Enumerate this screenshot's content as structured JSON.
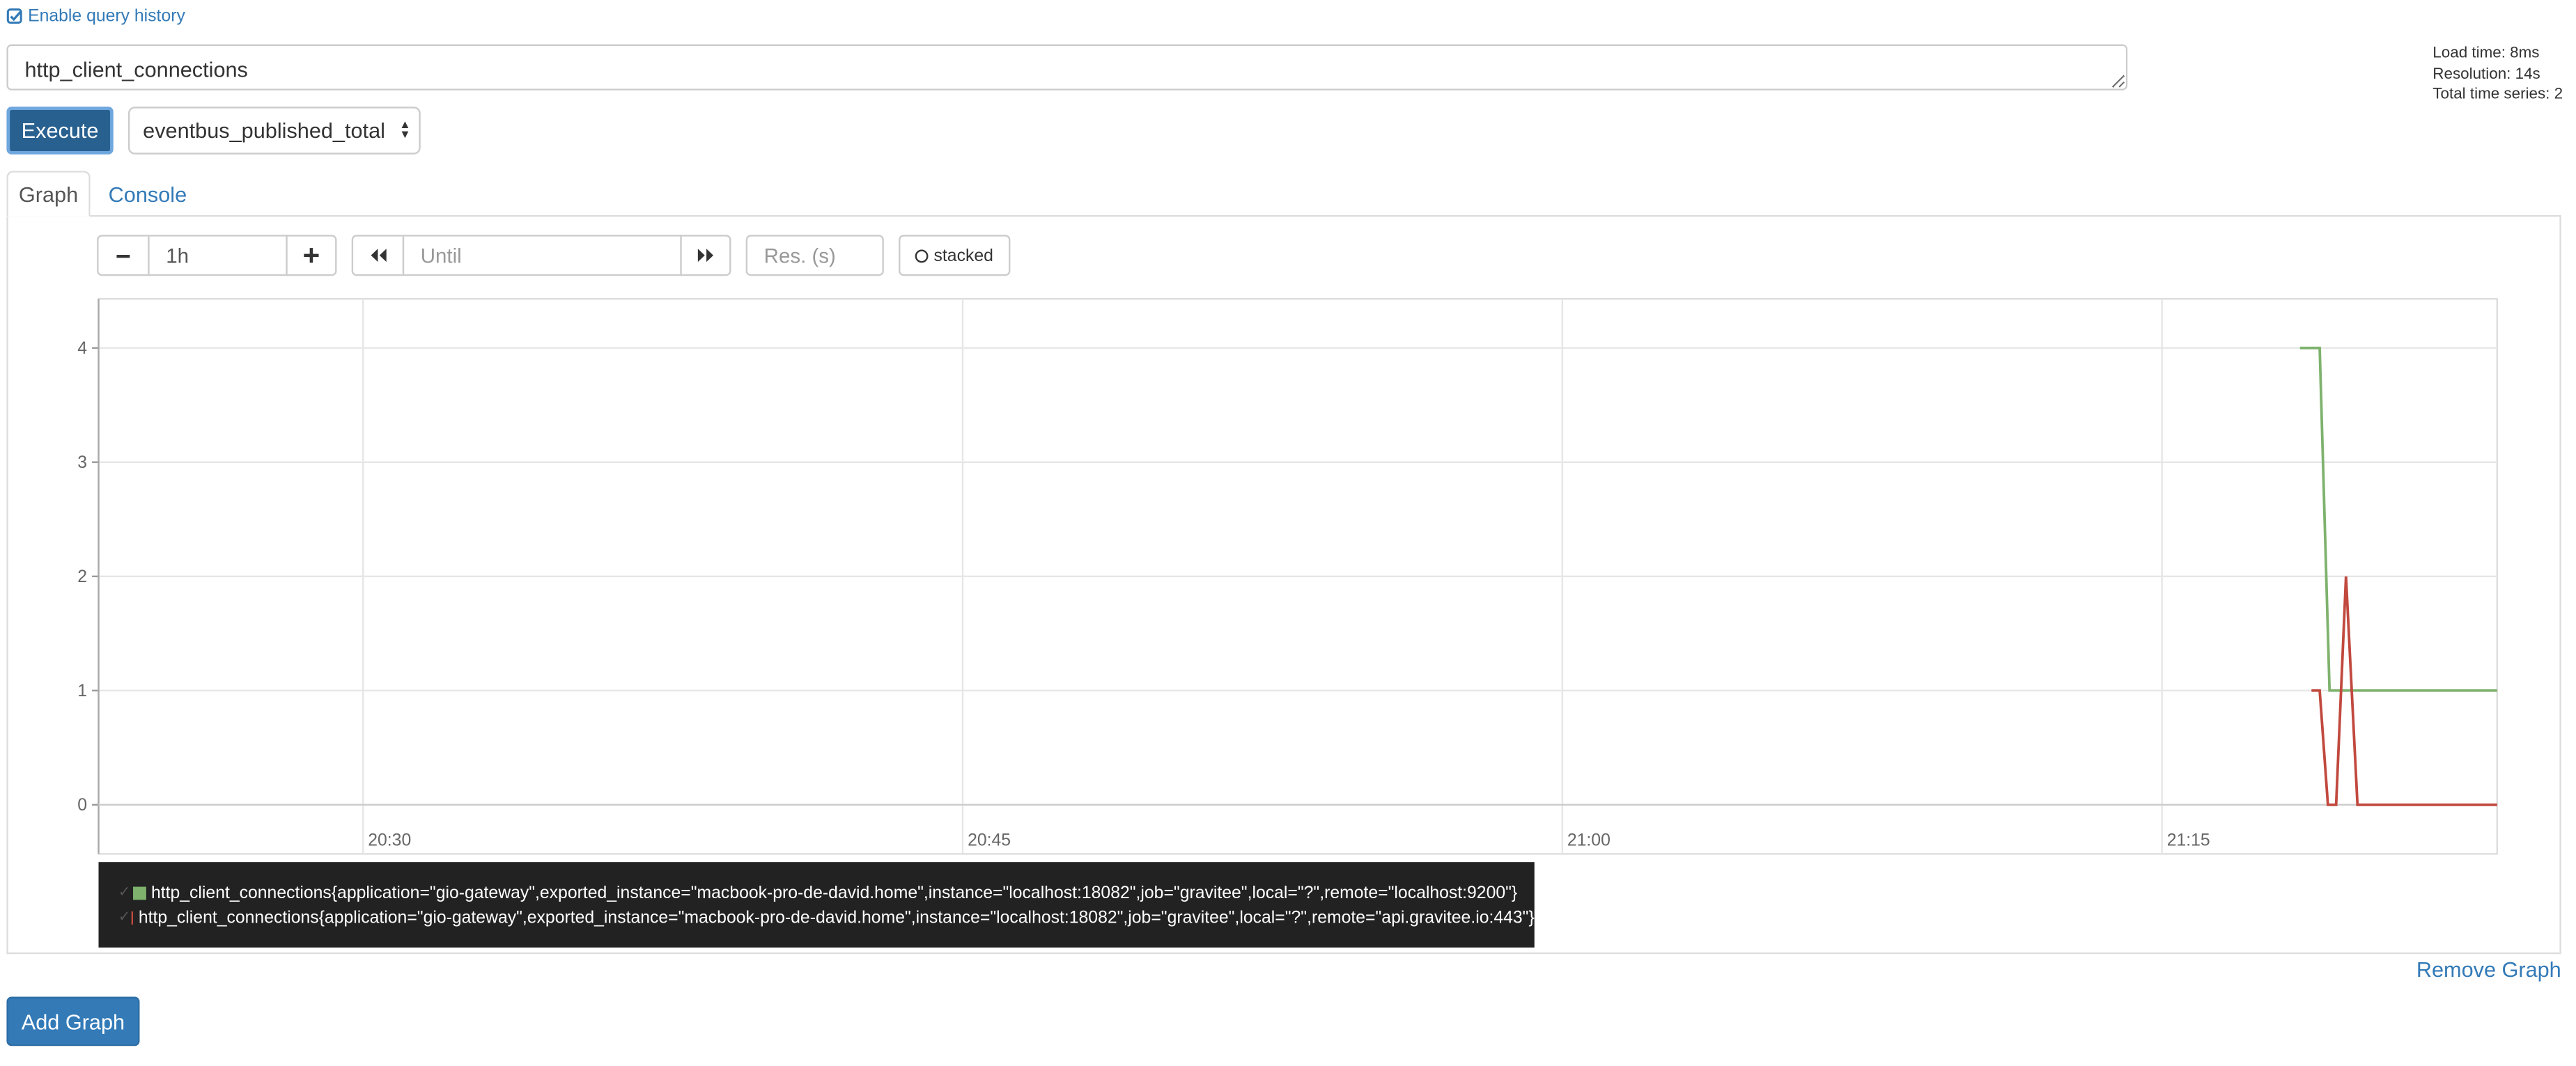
{
  "history": {
    "label": "Enable query history"
  },
  "query": {
    "expression": "http_client_connections"
  },
  "stats": {
    "load_time": "Load time: 8ms",
    "resolution": "Resolution: 14s",
    "total_series": "Total time series: 2"
  },
  "toolbar": {
    "execute_label": "Execute",
    "metric_selected": "eventbus_published_total"
  },
  "tabs": [
    {
      "label": "Graph",
      "active": true
    },
    {
      "label": "Console",
      "active": false
    }
  ],
  "graph_controls": {
    "minus_icon": "minus-icon",
    "range": "1h",
    "plus_icon": "plus-icon",
    "back_icon": "backward-icon",
    "until_placeholder": "Until",
    "forward_icon": "forward-icon",
    "res_placeholder": "Res. (s)",
    "stacked_label": "stacked"
  },
  "chart_data": {
    "type": "line",
    "x_ticks": [
      "20:30",
      "20:45",
      "21:00",
      "21:15"
    ],
    "y_ticks": [
      0,
      1,
      2,
      3,
      4
    ],
    "ylim": [
      -0.43,
      4.43
    ],
    "xlim": [
      "20:23.4",
      "21:23.4"
    ],
    "grid": true,
    "series": [
      {
        "name": "http_client_connections{application=\"gio-gateway\",exported_instance=\"macbook-pro-de-david.home\",instance=\"localhost:18082\",job=\"gravitee\",local=\"?\",remote=\"localhost:9200\"}",
        "color": "#7eb26d",
        "points": [
          [
            1400,
            4
          ],
          [
            1412,
            4
          ],
          [
            1418,
            1
          ],
          [
            1520,
            1
          ]
        ]
      },
      {
        "name": "http_client_connections{application=\"gio-gateway\",exported_instance=\"macbook-pro-de-david.home\",instance=\"localhost:18082\",job=\"gravitee\",local=\"?\",remote=\"api.gravitee.io:443\"}",
        "color": "#c1493e",
        "points": [
          [
            1407,
            1
          ],
          [
            1412,
            1
          ],
          [
            1417,
            0
          ],
          [
            1422,
            0
          ],
          [
            1428,
            2
          ],
          [
            1435,
            0
          ],
          [
            1520,
            0
          ]
        ]
      }
    ]
  },
  "legend_check": "✓",
  "actions": {
    "remove_graph": "Remove Graph",
    "add_graph": "Add Graph"
  }
}
